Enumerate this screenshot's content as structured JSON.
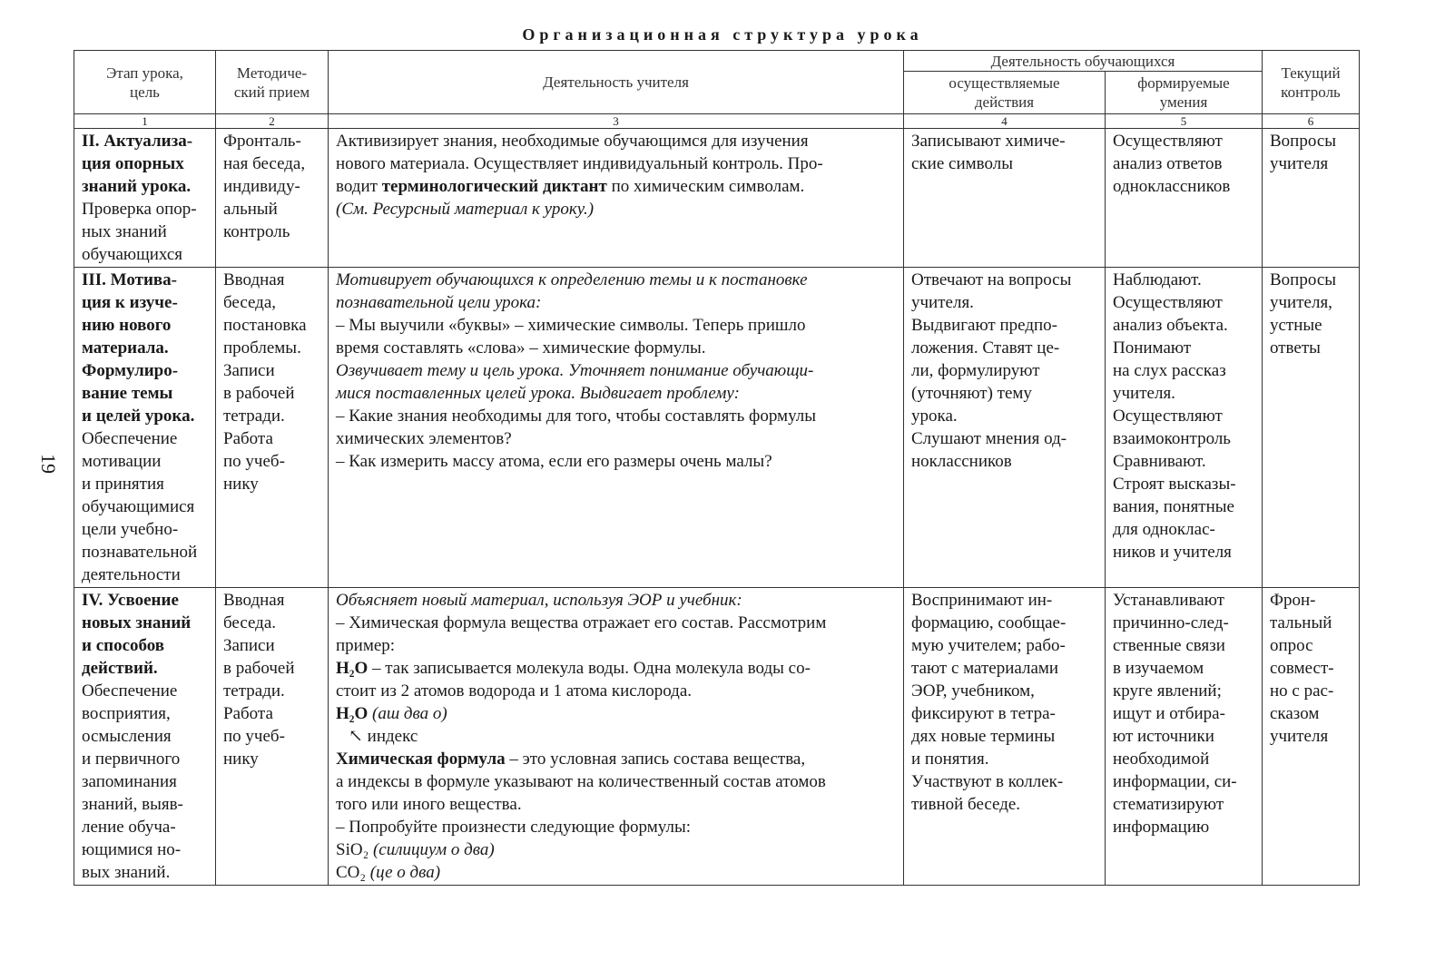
{
  "title": "Организационная структура урока",
  "page_number": "19",
  "header": {
    "col1": "Этап урока,\nцель",
    "col2": "Методиче-\nский прием",
    "col3": "Деятельность учителя",
    "students_group": "Деятельность обучающихся",
    "col4": "осуществляемые\nдействия",
    "col5": "формируемые\nумения",
    "col6": "Текущий\nконтроль",
    "numbers": [
      "1",
      "2",
      "3",
      "4",
      "5",
      "6"
    ]
  },
  "rows": [
    {
      "cells": [
        [
          [
            {
              "t": "II. Актуализа-",
              "s": "b"
            }
          ],
          [
            {
              "t": "ция опорных",
              "s": "b"
            }
          ],
          [
            {
              "t": "знаний урока.",
              "s": "b"
            }
          ],
          [
            {
              "t": "Проверка опор-",
              "s": ""
            }
          ],
          [
            {
              "t": "ных знаний",
              "s": ""
            }
          ],
          [
            {
              "t": "обучающихся",
              "s": ""
            }
          ]
        ],
        [
          [
            {
              "t": "Фронталь-",
              "s": ""
            }
          ],
          [
            {
              "t": "ная беседа,",
              "s": ""
            }
          ],
          [
            {
              "t": "индивиду-",
              "s": ""
            }
          ],
          [
            {
              "t": "альный",
              "s": ""
            }
          ],
          [
            {
              "t": "контроль",
              "s": ""
            }
          ]
        ],
        [
          [
            {
              "t": "Активизирует знания, необходимые обучающимся для изучения",
              "s": ""
            }
          ],
          [
            {
              "t": "нового материала. Осуществляет индивидуальный контроль. Про-",
              "s": ""
            }
          ],
          [
            {
              "t": "водит ",
              "s": ""
            },
            {
              "t": "терминологический диктант",
              "s": "b"
            },
            {
              "t": " по химическим символам.",
              "s": ""
            }
          ],
          [
            {
              "t": "(См. Ресурсный материал к уроку.)",
              "s": "i"
            }
          ]
        ],
        [
          [
            {
              "t": "Записывают химиче-",
              "s": ""
            }
          ],
          [
            {
              "t": "ские символы",
              "s": ""
            }
          ]
        ],
        [
          [
            {
              "t": "Осуществляют",
              "s": ""
            }
          ],
          [
            {
              "t": "анализ ответов",
              "s": ""
            }
          ],
          [
            {
              "t": "одноклассников",
              "s": ""
            }
          ]
        ],
        [
          [
            {
              "t": "Вопросы",
              "s": ""
            }
          ],
          [
            {
              "t": "учителя",
              "s": ""
            }
          ]
        ]
      ]
    },
    {
      "cells": [
        [
          [
            {
              "t": "III. Мотива-",
              "s": "b"
            }
          ],
          [
            {
              "t": "ция к изуче-",
              "s": "b"
            }
          ],
          [
            {
              "t": "нию нового",
              "s": "b"
            }
          ],
          [
            {
              "t": "материала.",
              "s": "b"
            }
          ],
          [
            {
              "t": "Формулиро-",
              "s": "b"
            }
          ],
          [
            {
              "t": "вание темы",
              "s": "b"
            }
          ],
          [
            {
              "t": "и целей урока.",
              "s": "b"
            }
          ],
          [
            {
              "t": "Обеспечение",
              "s": ""
            }
          ],
          [
            {
              "t": "мотивации",
              "s": ""
            }
          ],
          [
            {
              "t": "и принятия",
              "s": ""
            }
          ],
          [
            {
              "t": "обучающимися",
              "s": ""
            }
          ],
          [
            {
              "t": "цели учебно-",
              "s": ""
            }
          ],
          [
            {
              "t": "познавательной",
              "s": ""
            }
          ],
          [
            {
              "t": "деятельности",
              "s": ""
            }
          ]
        ],
        [
          [
            {
              "t": "Вводная",
              "s": ""
            }
          ],
          [
            {
              "t": "беседа,",
              "s": ""
            }
          ],
          [
            {
              "t": "постановка",
              "s": ""
            }
          ],
          [
            {
              "t": "проблемы.",
              "s": ""
            }
          ],
          [
            {
              "t": " ",
              "s": ""
            }
          ],
          [
            {
              "t": "Записи",
              "s": ""
            }
          ],
          [
            {
              "t": "в рабочей",
              "s": ""
            }
          ],
          [
            {
              "t": "тетради.",
              "s": ""
            }
          ],
          [
            {
              "t": " ",
              "s": ""
            }
          ],
          [
            {
              "t": "Работа",
              "s": ""
            }
          ],
          [
            {
              "t": "по учеб-",
              "s": ""
            }
          ],
          [
            {
              "t": "нику",
              "s": ""
            }
          ]
        ],
        [
          [
            {
              "t": "Мотивирует обучающихся к определению темы и к постановке",
              "s": "i"
            }
          ],
          [
            {
              "t": "познавательной цели урока:",
              "s": "i"
            }
          ],
          [
            {
              "t": "– Мы выучили «буквы» – химические символы. Теперь пришло",
              "s": ""
            }
          ],
          [
            {
              "t": "время составлять «слова» – химические формулы.",
              "s": ""
            }
          ],
          [
            {
              "t": "Озвучивает тему и цель урока. Уточняет понимание обучающи-",
              "s": "i"
            }
          ],
          [
            {
              "t": "мися поставленных целей урока. Выдвигает проблему:",
              "s": "i"
            }
          ],
          [
            {
              "t": "– Какие знания необходимы для того, чтобы составлять формулы",
              "s": ""
            }
          ],
          [
            {
              "t": "химических элементов?",
              "s": ""
            }
          ],
          [
            {
              "t": "– Как измерить массу атома, если его размеры очень малы?",
              "s": ""
            }
          ]
        ],
        [
          [
            {
              "t": "Отвечают на вопросы",
              "s": ""
            }
          ],
          [
            {
              "t": "учителя.",
              "s": ""
            }
          ],
          [
            {
              "t": "Выдвигают предпо-",
              "s": ""
            }
          ],
          [
            {
              "t": "ложения. Ставят це-",
              "s": ""
            }
          ],
          [
            {
              "t": "ли, формулируют",
              "s": ""
            }
          ],
          [
            {
              "t": "(уточняют) тему",
              "s": ""
            }
          ],
          [
            {
              "t": "урока.",
              "s": ""
            }
          ],
          [
            {
              "t": "Слушают мнения од-",
              "s": ""
            }
          ],
          [
            {
              "t": "ноклассников",
              "s": ""
            }
          ]
        ],
        [
          [
            {
              "t": "Наблюдают.",
              "s": ""
            }
          ],
          [
            {
              "t": "Осуществляют",
              "s": ""
            }
          ],
          [
            {
              "t": "анализ объекта.",
              "s": ""
            }
          ],
          [
            {
              "t": "Понимают",
              "s": ""
            }
          ],
          [
            {
              "t": "на слух рассказ",
              "s": ""
            }
          ],
          [
            {
              "t": "учителя.",
              "s": ""
            }
          ],
          [
            {
              "t": "Осуществляют",
              "s": ""
            }
          ],
          [
            {
              "t": "взаимоконтроль",
              "s": ""
            }
          ],
          [
            {
              "t": "Сравнивают.",
              "s": ""
            }
          ],
          [
            {
              "t": "Строят высказы-",
              "s": ""
            }
          ],
          [
            {
              "t": "вания, понятные",
              "s": ""
            }
          ],
          [
            {
              "t": "для одноклас-",
              "s": ""
            }
          ],
          [
            {
              "t": "ников и учителя",
              "s": ""
            }
          ]
        ],
        [
          [
            {
              "t": "Вопросы",
              "s": ""
            }
          ],
          [
            {
              "t": "учителя,",
              "s": ""
            }
          ],
          [
            {
              "t": "устные",
              "s": ""
            }
          ],
          [
            {
              "t": "ответы",
              "s": ""
            }
          ]
        ]
      ]
    },
    {
      "cells": [
        [
          [
            {
              "t": "IV. Усвоение",
              "s": "b"
            }
          ],
          [
            {
              "t": "новых знаний",
              "s": "b"
            }
          ],
          [
            {
              "t": "и способов",
              "s": "b"
            }
          ],
          [
            {
              "t": "действий.",
              "s": "b"
            }
          ],
          [
            {
              "t": "Обеспечение",
              "s": ""
            }
          ],
          [
            {
              "t": "восприятия,",
              "s": ""
            }
          ],
          [
            {
              "t": "осмысления",
              "s": ""
            }
          ],
          [
            {
              "t": "и первичного",
              "s": ""
            }
          ],
          [
            {
              "t": "запоминания",
              "s": ""
            }
          ],
          [
            {
              "t": "знаний, выяв-",
              "s": ""
            }
          ],
          [
            {
              "t": "ление обуча-",
              "s": ""
            }
          ],
          [
            {
              "t": "ющимися но-",
              "s": ""
            }
          ],
          [
            {
              "t": "вых знаний.",
              "s": ""
            }
          ]
        ],
        [
          [
            {
              "t": "Вводная",
              "s": ""
            }
          ],
          [
            {
              "t": "беседа.",
              "s": ""
            }
          ],
          [
            {
              "t": " ",
              "s": ""
            }
          ],
          [
            {
              "t": "Записи",
              "s": ""
            }
          ],
          [
            {
              "t": "в рабочей",
              "s": ""
            }
          ],
          [
            {
              "t": "тетради.",
              "s": ""
            }
          ],
          [
            {
              "t": " ",
              "s": ""
            }
          ],
          [
            {
              "t": "Работа",
              "s": ""
            }
          ],
          [
            {
              "t": "по учеб-",
              "s": ""
            }
          ],
          [
            {
              "t": "нику",
              "s": ""
            }
          ]
        ],
        [
          [
            {
              "t": "Объясняет новый материал, используя ЭОР и учебник:",
              "s": "i"
            }
          ],
          [
            {
              "t": "– Химическая формула вещества отражает его состав. Рассмотрим",
              "s": ""
            }
          ],
          [
            {
              "t": "пример:",
              "s": ""
            }
          ],
          [
            {
              "t": "H₂O",
              "s": "b"
            },
            {
              "t": " – так записывается молекула воды. Одна молекула воды со-",
              "s": ""
            }
          ],
          [
            {
              "t": "стоит из 2 атомов водорода и 1 атома кислорода.",
              "s": ""
            }
          ],
          [
            {
              "t": "H₂O",
              "s": "b"
            },
            {
              "t": " (аш два о)",
              "s": "i"
            }
          ],
          [
            {
              "t": "↖ индекс",
              "s": "note"
            }
          ],
          [
            {
              "t": "Химическая формула",
              "s": "b"
            },
            {
              "t": " – это условная запись состава вещества,",
              "s": ""
            }
          ],
          [
            {
              "t": "а индексы в формуле указывают на количественный состав атомов",
              "s": ""
            }
          ],
          [
            {
              "t": "того или иного вещества.",
              "s": ""
            }
          ],
          [
            {
              "t": "– Попробуйте произнести следующие формулы:",
              "s": ""
            }
          ],
          [
            {
              "t": "SiO₂",
              "s": ""
            },
            {
              "t": " (силициум о два)",
              "s": "i"
            }
          ],
          [
            {
              "t": "CO₂",
              "s": ""
            },
            {
              "t": " (це о два)",
              "s": "i"
            }
          ]
        ],
        [
          [
            {
              "t": "Воспринимают ин-",
              "s": ""
            }
          ],
          [
            {
              "t": "формацию, сообщае-",
              "s": ""
            }
          ],
          [
            {
              "t": "мую учителем; рабо-",
              "s": ""
            }
          ],
          [
            {
              "t": "тают с материалами",
              "s": ""
            }
          ],
          [
            {
              "t": "ЭОР, учебником,",
              "s": ""
            }
          ],
          [
            {
              "t": "фиксируют в тетра-",
              "s": ""
            }
          ],
          [
            {
              "t": "дях новые термины",
              "s": ""
            }
          ],
          [
            {
              "t": "и понятия.",
              "s": ""
            }
          ],
          [
            {
              "t": " ",
              "s": ""
            }
          ],
          [
            {
              "t": " ",
              "s": ""
            }
          ],
          [
            {
              "t": "Участвуют в коллек-",
              "s": ""
            }
          ],
          [
            {
              "t": "тивной беседе.",
              "s": ""
            }
          ]
        ],
        [
          [
            {
              "t": "Устанавливают",
              "s": ""
            }
          ],
          [
            {
              "t": "причинно-след-",
              "s": ""
            }
          ],
          [
            {
              "t": "ственные связи",
              "s": ""
            }
          ],
          [
            {
              "t": "в изучаемом",
              "s": ""
            }
          ],
          [
            {
              "t": "круге явлений;",
              "s": ""
            }
          ],
          [
            {
              "t": "ищут и отбира-",
              "s": ""
            }
          ],
          [
            {
              "t": "ют источники",
              "s": ""
            }
          ],
          [
            {
              "t": "необходимой",
              "s": ""
            }
          ],
          [
            {
              "t": "информации, си-",
              "s": ""
            }
          ],
          [
            {
              "t": "стематизируют",
              "s": ""
            }
          ],
          [
            {
              "t": "информацию",
              "s": ""
            }
          ]
        ],
        [
          [
            {
              "t": "Фрон-",
              "s": ""
            }
          ],
          [
            {
              "t": "тальный",
              "s": ""
            }
          ],
          [
            {
              "t": "опрос",
              "s": ""
            }
          ],
          [
            {
              "t": "совмест-",
              "s": ""
            }
          ],
          [
            {
              "t": "но с рас-",
              "s": ""
            }
          ],
          [
            {
              "t": "сказом",
              "s": ""
            }
          ],
          [
            {
              "t": "учителя",
              "s": ""
            }
          ]
        ]
      ]
    }
  ]
}
